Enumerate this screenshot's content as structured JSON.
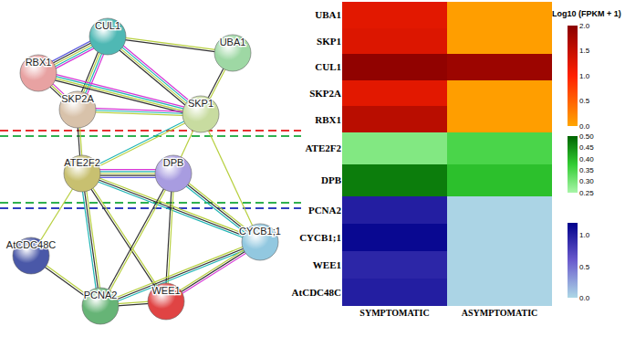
{
  "network": {
    "nodes": [
      {
        "label": "CUL1",
        "color": "#4fb8b4"
      },
      {
        "label": "RBX1",
        "color": "#e8a2a2"
      },
      {
        "label": "UBA1",
        "color": "#9ed8a4"
      },
      {
        "label": "SKP2A",
        "color": "#d8c2aa"
      },
      {
        "label": "SKP1",
        "color": "#c8dca0"
      },
      {
        "label": "ATE2F2",
        "color": "#c8c070"
      },
      {
        "label": "DPB",
        "color": "#a89ce0"
      },
      {
        "label": "AtCDC48C",
        "color": "#4a58a8"
      },
      {
        "label": "PCNA2",
        "color": "#66b476"
      },
      {
        "label": "WEE1",
        "color": "#e04444"
      },
      {
        "label": "CYCB1;1",
        "color": "#92c8e0"
      }
    ],
    "edges": [
      {
        "source": 0,
        "target": 1,
        "colors": [
          "#d535d5",
          "#1fb5b5",
          "#b8d040",
          "#333333",
          "#6060e0"
        ]
      },
      {
        "source": 0,
        "target": 3,
        "colors": [
          "#d535d5",
          "#1fb5b5",
          "#b8d040",
          "#333333"
        ]
      },
      {
        "source": 0,
        "target": 4,
        "colors": [
          "#d535d5",
          "#1fb5b5",
          "#b8d040",
          "#333333"
        ]
      },
      {
        "source": 0,
        "target": 2,
        "colors": [
          "#b8d040",
          "#333333"
        ]
      },
      {
        "source": 1,
        "target": 3,
        "colors": [
          "#d535d5",
          "#b8d040",
          "#333333"
        ]
      },
      {
        "source": 1,
        "target": 4,
        "colors": [
          "#d535d5",
          "#1fb5b5",
          "#b8d040",
          "#333333"
        ]
      },
      {
        "source": 2,
        "target": 4,
        "colors": [
          "#b8d040",
          "#333333"
        ]
      },
      {
        "source": 3,
        "target": 4,
        "colors": [
          "#d535d5",
          "#1fb5b5",
          "#b8d040"
        ]
      },
      {
        "source": 3,
        "target": 5,
        "colors": [
          "#b8d040",
          "#333333"
        ]
      },
      {
        "source": 4,
        "target": 5,
        "colors": [
          "#b8d040",
          "#1fb5b5"
        ]
      },
      {
        "source": 4,
        "target": 6,
        "colors": [
          "#b8d040"
        ]
      },
      {
        "source": 4,
        "target": 10,
        "colors": [
          "#b8d040"
        ]
      },
      {
        "source": 5,
        "target": 6,
        "colors": [
          "#d535d5",
          "#1fb5b5",
          "#b8d040",
          "#333333",
          "#6060e0"
        ]
      },
      {
        "source": 5,
        "target": 8,
        "colors": [
          "#b8d040",
          "#333333",
          "#1fb5b5"
        ]
      },
      {
        "source": 5,
        "target": 9,
        "colors": [
          "#b8d040",
          "#333333"
        ]
      },
      {
        "source": 5,
        "target": 10,
        "colors": [
          "#b8d040",
          "#333333",
          "#1fb5b5"
        ]
      },
      {
        "source": 5,
        "target": 7,
        "colors": [
          "#b8d040"
        ]
      },
      {
        "source": 6,
        "target": 8,
        "colors": [
          "#b8d040",
          "#333333"
        ]
      },
      {
        "source": 6,
        "target": 9,
        "colors": [
          "#b8d040",
          "#333333"
        ]
      },
      {
        "source": 6,
        "target": 10,
        "colors": [
          "#b8d040",
          "#333333",
          "#1fb5b5"
        ]
      },
      {
        "source": 7,
        "target": 8,
        "colors": [
          "#b8d040",
          "#333333"
        ]
      },
      {
        "source": 8,
        "target": 9,
        "colors": [
          "#b8d040",
          "#333333"
        ]
      },
      {
        "source": 8,
        "target": 10,
        "colors": [
          "#b8d040",
          "#333333",
          "#1fb5b5"
        ]
      },
      {
        "source": 9,
        "target": 10,
        "colors": [
          "#b8d040",
          "#333333",
          "#d535d5"
        ]
      }
    ]
  },
  "chart_data": {
    "type": "heatmap",
    "categories": [
      "SYMPTOMATIC",
      "ASYMPTOMATIC"
    ],
    "panels": [
      {
        "rows": [
          "UBA1",
          "SKP1",
          "CUL1",
          "SKP2A",
          "RBX1"
        ],
        "cells": [
          [
            1.25,
            0.05
          ],
          [
            1.3,
            0.05
          ],
          [
            1.95,
            1.85
          ],
          [
            1.25,
            0.05
          ],
          [
            1.6,
            0.05
          ]
        ],
        "zlim": [
          0,
          2
        ],
        "zticks": [
          {
            "value": 0,
            "label": "0.0"
          },
          {
            "value": 0.5,
            "label": "0.5"
          },
          {
            "value": 1,
            "label": "1.0"
          },
          {
            "value": 1.5,
            "label": "1.5"
          },
          {
            "value": 2,
            "label": "2.0"
          }
        ],
        "colors": [
          "#ffa500",
          "#ff2000",
          "#8b0000"
        ],
        "colorbar_title": "Log10 (FPKM + 1)"
      },
      {
        "rows": [
          "ATE2F2",
          "DPB"
        ],
        "cells": [
          [
            0.29,
            0.35
          ],
          [
            0.47,
            0.39
          ]
        ],
        "zlim": [
          0.25,
          0.5
        ],
        "zticks": [
          {
            "value": 0.25,
            "label": "0.25"
          },
          {
            "value": 0.3,
            "label": "0.30"
          },
          {
            "value": 0.35,
            "label": "0.35"
          },
          {
            "value": 0.4,
            "label": "0.40"
          },
          {
            "value": 0.45,
            "label": "0.45"
          },
          {
            "value": 0.5,
            "label": "0.50"
          }
        ],
        "colors": [
          "#a8f5a8",
          "#32cd32",
          "#006400"
        ]
      },
      {
        "rows": [
          "PCNA2",
          "CYCB1;1",
          "WEE1",
          "AtCDC48C"
        ],
        "cells": [
          [
            1.0,
            0.02
          ],
          [
            1.15,
            0.02
          ],
          [
            0.95,
            0.02
          ],
          [
            1.0,
            0.02
          ]
        ],
        "zlim": [
          0,
          1.2
        ],
        "zticks": [
          {
            "value": 0,
            "label": "0.0"
          },
          {
            "value": 0.5,
            "label": "0.5"
          },
          {
            "value": 1,
            "label": "1.0"
          }
        ],
        "colors": [
          "#add8e6",
          "#6a5acd",
          "#00008b"
        ]
      }
    ]
  }
}
